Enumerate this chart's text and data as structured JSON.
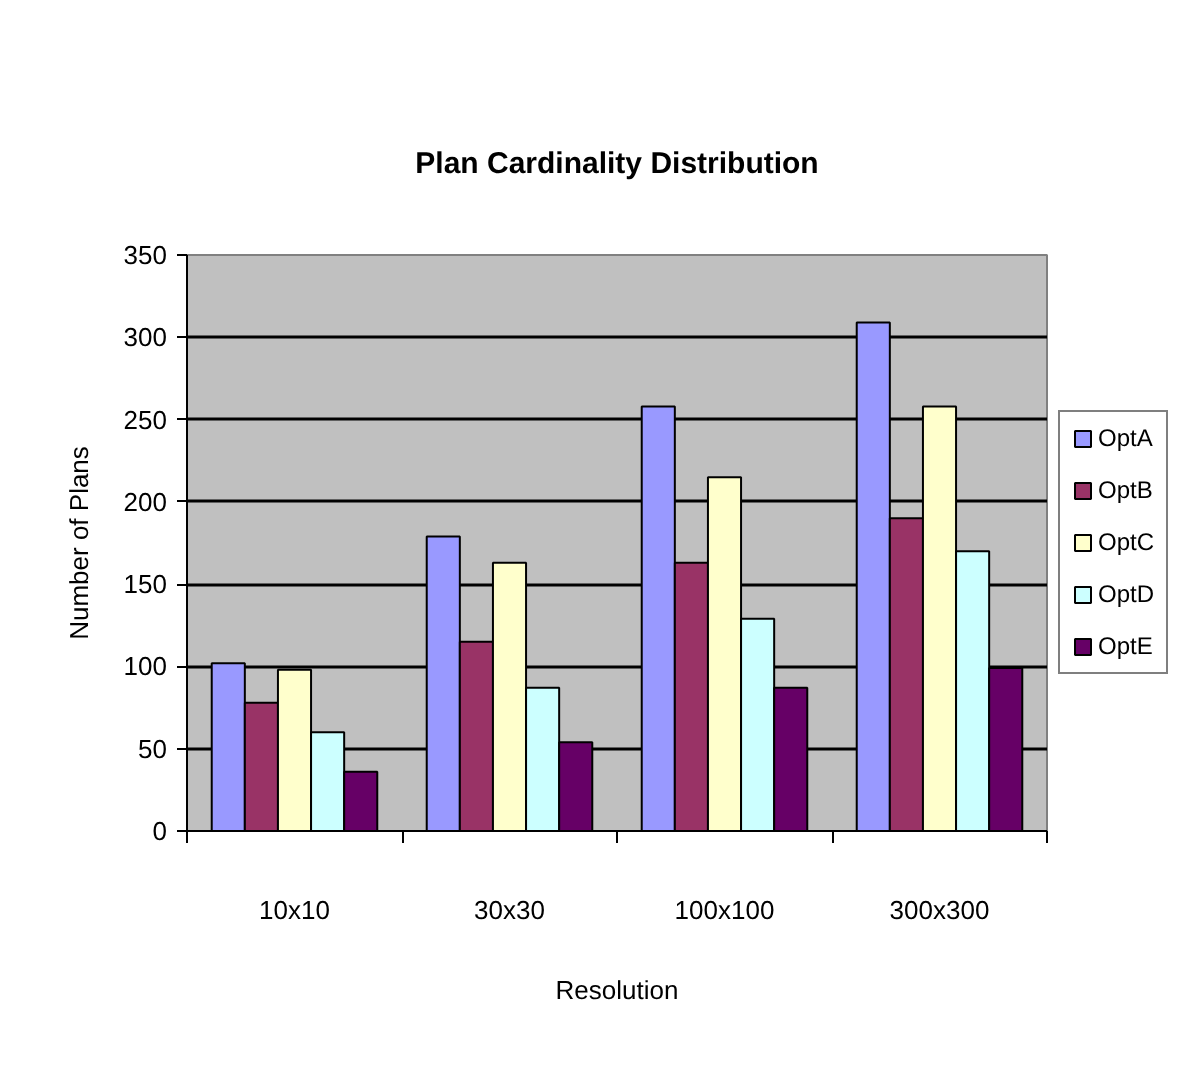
{
  "chart_data": {
    "type": "bar",
    "title": "Plan Cardinality Distribution",
    "xlabel": "Resolution",
    "ylabel": "Number of Plans",
    "categories": [
      "10x10",
      "30x30",
      "100x100",
      "300x300"
    ],
    "series": [
      {
        "name": "OptA",
        "color": "#9999ff",
        "values": [
          102,
          179,
          258,
          309
        ]
      },
      {
        "name": "OptB",
        "color": "#993366",
        "values": [
          78,
          115,
          163,
          190
        ]
      },
      {
        "name": "OptC",
        "color": "#ffffcc",
        "values": [
          98,
          163,
          215,
          258
        ]
      },
      {
        "name": "OptD",
        "color": "#ccffff",
        "values": [
          60,
          87,
          129,
          170
        ]
      },
      {
        "name": "OptE",
        "color": "#660066",
        "values": [
          36,
          54,
          87,
          99
        ]
      }
    ],
    "ylim": [
      0,
      350
    ],
    "yticks": [
      0,
      50,
      100,
      150,
      200,
      250,
      300,
      350
    ],
    "grid": "y",
    "legend": "right"
  }
}
